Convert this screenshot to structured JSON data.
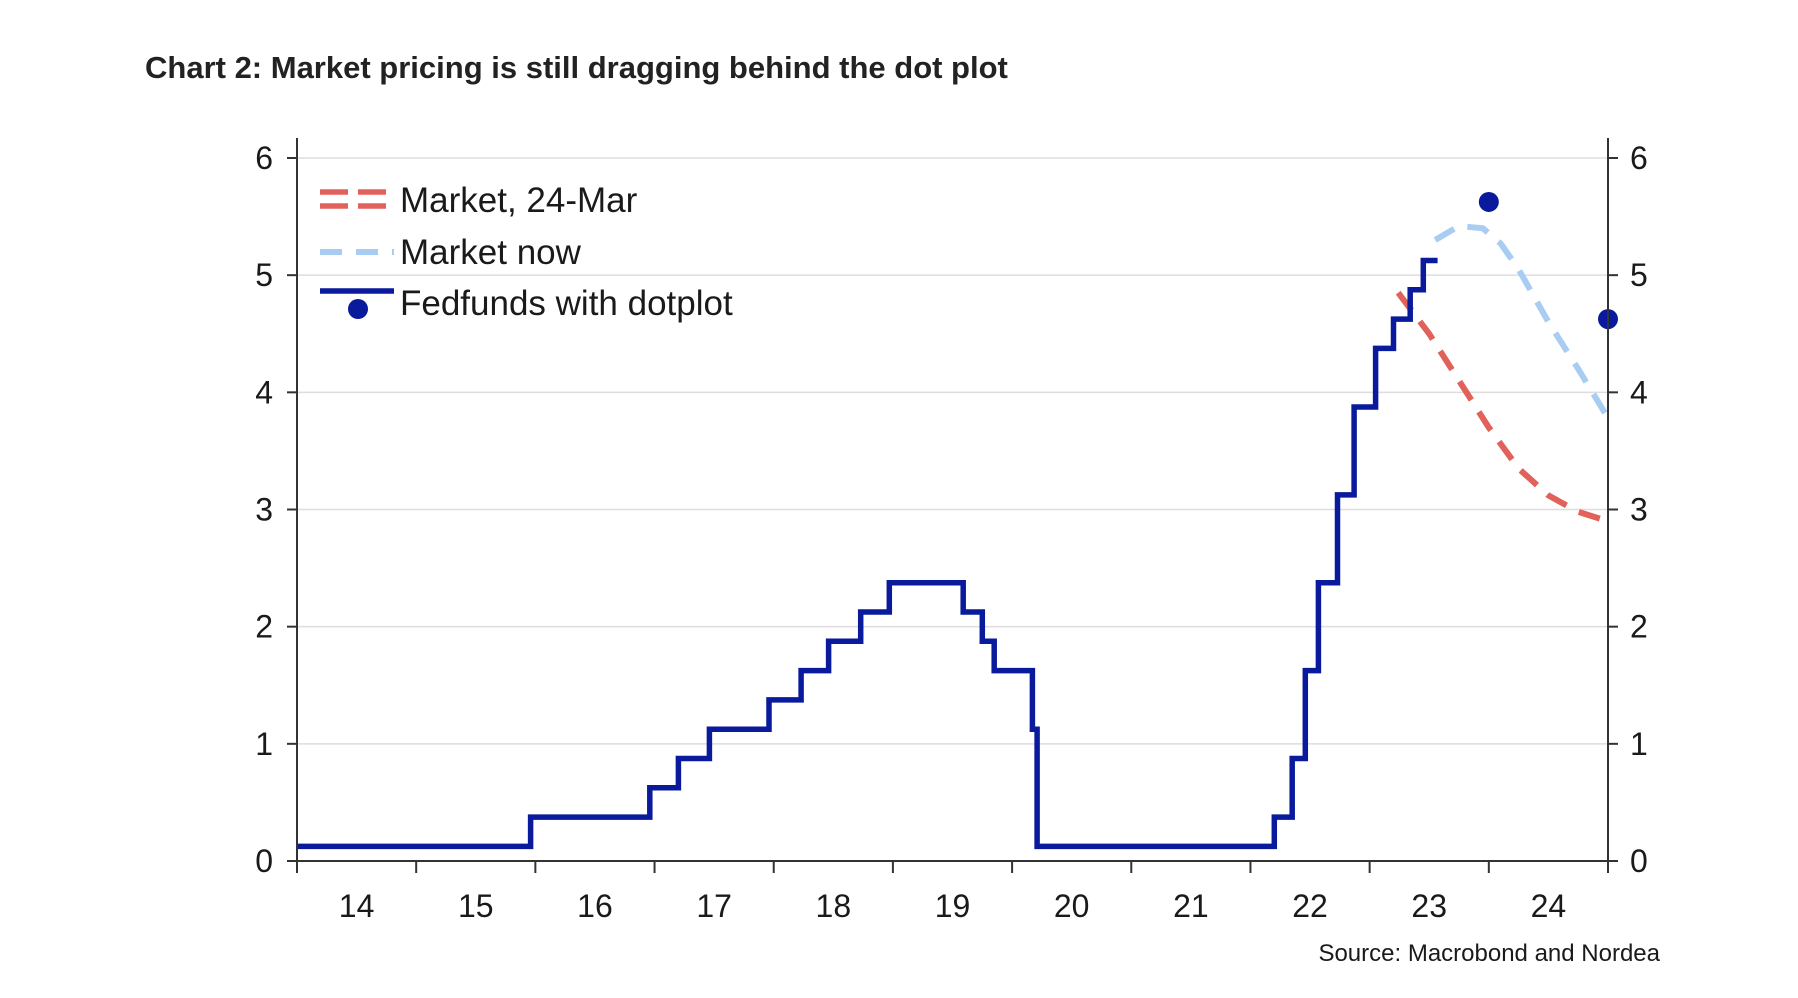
{
  "chart_data": {
    "type": "line",
    "title": "Chart 2: Market pricing is still dragging behind the dot plot",
    "source": "Source: Macrobond and Nordea",
    "x_tick_labels": [
      "14",
      "15",
      "16",
      "17",
      "18",
      "19",
      "20",
      "21",
      "22",
      "23",
      "24"
    ],
    "y_ticks": [
      0,
      1,
      2,
      3,
      4,
      5,
      6
    ],
    "ylim": [
      0,
      6
    ],
    "xlim": [
      2014.0,
      2025.0
    ],
    "grid": true,
    "secondary_y_axis": true,
    "legend_placement": "top-left",
    "colors": {
      "fedfunds": "#0a1a9c",
      "market_mar": "#e0625a",
      "market_now": "#a9cdf2",
      "grid": "#dddddd",
      "axis": "#333333"
    },
    "series": [
      {
        "name": "Market, 24-Mar",
        "style": "dashed",
        "points": [
          [
            2023.24,
            4.85
          ],
          [
            2023.5,
            4.5
          ],
          [
            2023.75,
            4.1
          ],
          [
            2024.0,
            3.7
          ],
          [
            2024.25,
            3.35
          ],
          [
            2024.5,
            3.12
          ],
          [
            2024.75,
            2.98
          ],
          [
            2025.0,
            2.9
          ]
        ]
      },
      {
        "name": "Market now",
        "style": "dashed",
        "points": [
          [
            2023.55,
            5.3
          ],
          [
            2023.75,
            5.42
          ],
          [
            2023.95,
            5.4
          ],
          [
            2024.1,
            5.27
          ],
          [
            2024.25,
            5.05
          ],
          [
            2024.5,
            4.6
          ],
          [
            2024.75,
            4.2
          ],
          [
            2025.0,
            3.78
          ]
        ]
      },
      {
        "name": "Fedfunds with dotplot",
        "style": "step",
        "points": [
          [
            2014.0,
            0.125
          ],
          [
            2015.96,
            0.375
          ],
          [
            2016.96,
            0.625
          ],
          [
            2017.2,
            0.875
          ],
          [
            2017.46,
            1.125
          ],
          [
            2017.96,
            1.375
          ],
          [
            2018.23,
            1.625
          ],
          [
            2018.46,
            1.875
          ],
          [
            2018.73,
            2.125
          ],
          [
            2018.97,
            2.375
          ],
          [
            2019.59,
            2.125
          ],
          [
            2019.75,
            1.875
          ],
          [
            2019.85,
            1.625
          ],
          [
            2020.17,
            1.125
          ],
          [
            2020.21,
            0.125
          ],
          [
            2022.2,
            0.375
          ],
          [
            2022.35,
            0.875
          ],
          [
            2022.46,
            1.625
          ],
          [
            2022.57,
            2.375
          ],
          [
            2022.73,
            3.125
          ],
          [
            2022.87,
            3.875
          ],
          [
            2023.05,
            4.375
          ],
          [
            2023.2,
            4.625
          ],
          [
            2023.34,
            4.875
          ],
          [
            2023.45,
            5.125
          ],
          [
            2023.57,
            5.125
          ]
        ],
        "dots": [
          [
            2024.0,
            5.625
          ],
          [
            2025.0,
            4.625
          ]
        ]
      }
    ]
  }
}
